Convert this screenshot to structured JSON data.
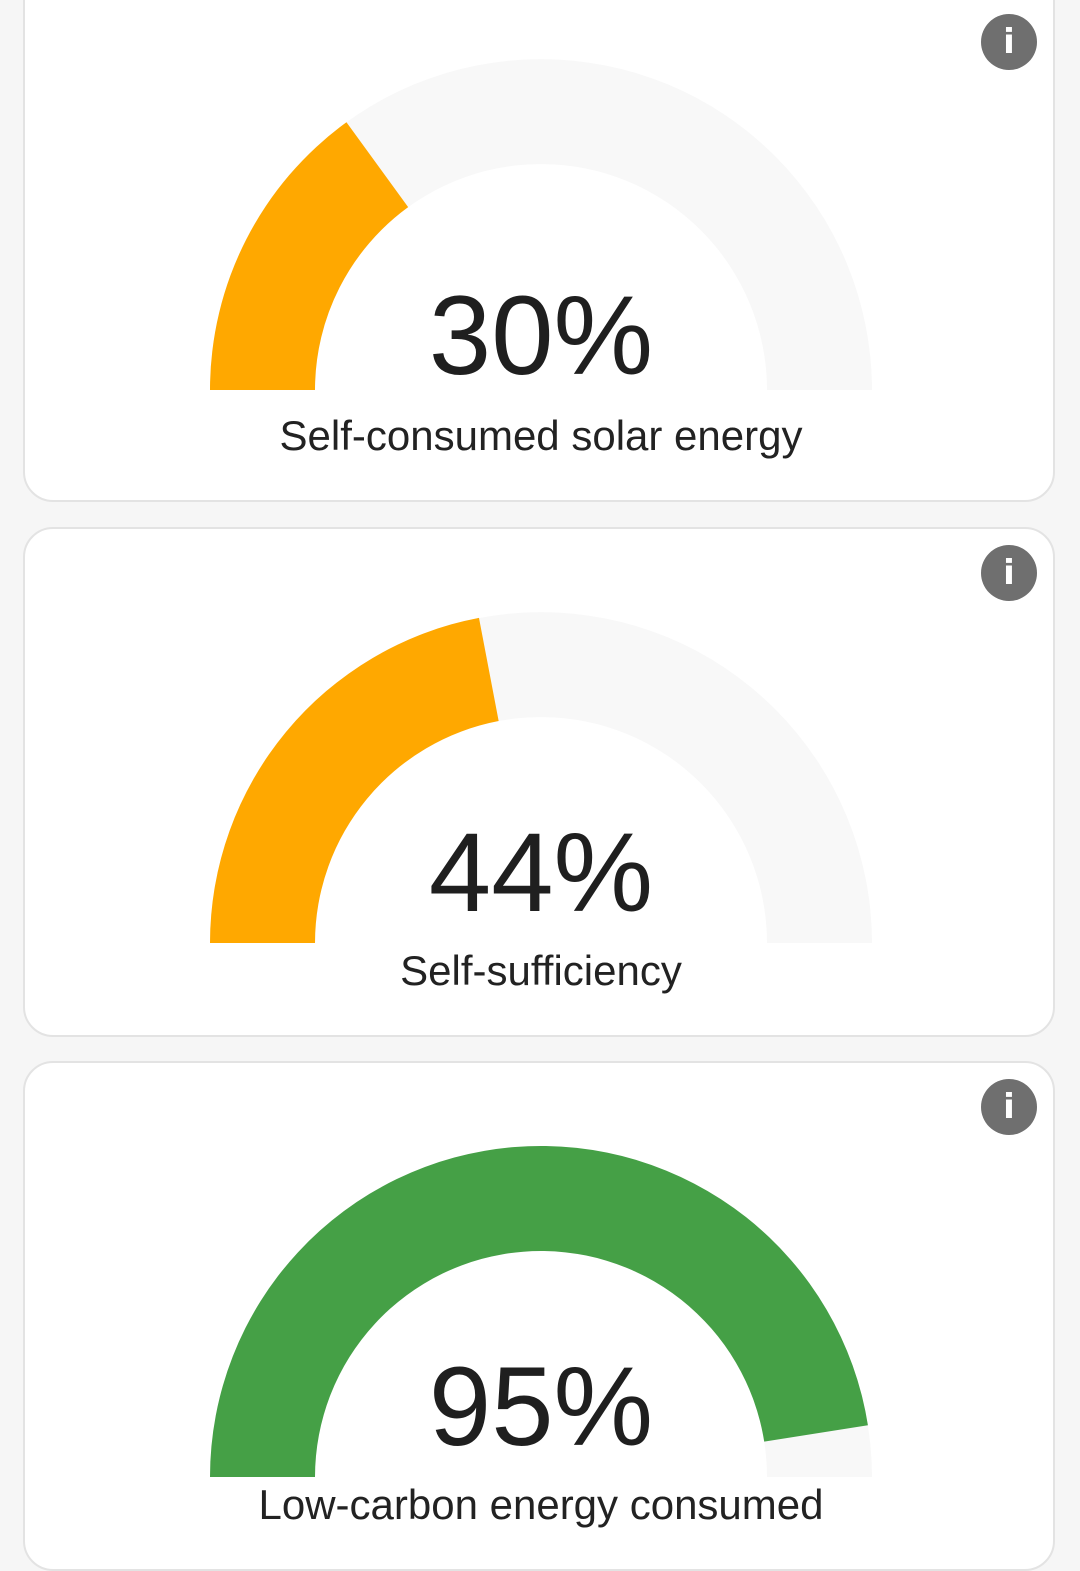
{
  "colors": {
    "orange": "#FFA800",
    "green": "#45A046",
    "track": "#F8F8F8"
  },
  "info_icon": "info-icon",
  "cards": [
    {
      "value": 30,
      "value_text": "30%",
      "label": "Self-consumed solar energy",
      "color": "#FFA800"
    },
    {
      "value": 44,
      "value_text": "44%",
      "label": "Self-sufficiency",
      "color": "#FFA800"
    },
    {
      "value": 95,
      "value_text": "95%",
      "label": "Low-carbon energy consumed",
      "color": "#45A046"
    }
  ]
}
